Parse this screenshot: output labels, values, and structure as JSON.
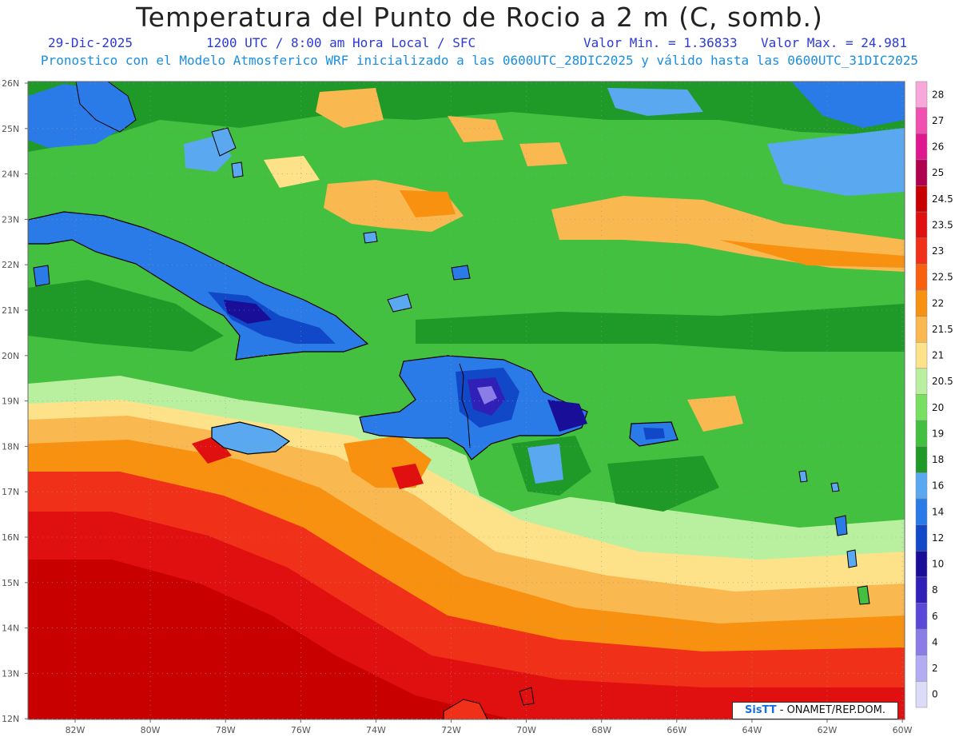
{
  "header": {
    "title": "Temperatura del Punto de Rocio a 2 m (C, somb.)",
    "date": "29-Dic-2025",
    "time_info": "1200 UTC / 8:00 am Hora Local / SFC",
    "min_label": "Valor Min. = 1.36833",
    "max_label": "Valor Max. = 24.981",
    "model_info": "Pronostico con el Modelo Atmosferico WRF inicializado a las 0600UTC_28DIC2025 y válido hasta las  0600UTC_31DIC2025"
  },
  "axes": {
    "lat_labels": [
      "26N",
      "25N",
      "24N",
      "23N",
      "22N",
      "21N",
      "20N",
      "19N",
      "18N",
      "17N",
      "16N",
      "15N",
      "14N",
      "13N",
      "12N"
    ],
    "lon_labels": [
      "82W",
      "80W",
      "78W",
      "76W",
      "74W",
      "72W",
      "70W",
      "68W",
      "66W",
      "64W",
      "62W",
      "60W"
    ]
  },
  "colorbar": {
    "labels": [
      "28",
      "27",
      "26",
      "25",
      "24.5",
      "23.5",
      "23",
      "22.5",
      "22",
      "21.5",
      "21",
      "20.5",
      "20",
      "19",
      "18",
      "16",
      "14",
      "12",
      "10",
      "8",
      "6",
      "4",
      "2",
      "0"
    ],
    "colors": [
      "#f7a8d8",
      "#f050b0",
      "#e01890",
      "#b00050",
      "#c80000",
      "#e01010",
      "#f03018",
      "#f86010",
      "#f89010",
      "#fab850",
      "#fde28a",
      "#b8f0a0",
      "#78e060",
      "#44c040",
      "#1f9a28",
      "#5aa8f0",
      "#2a7ae8",
      "#1048c8",
      "#180e98",
      "#3020b8",
      "#5a48d8",
      "#8c7ce8",
      "#b4acf2",
      "#dcdcf8"
    ]
  },
  "credit": {
    "brand": "SisTT",
    "text": "- ONAMET/REP.DOM."
  }
}
